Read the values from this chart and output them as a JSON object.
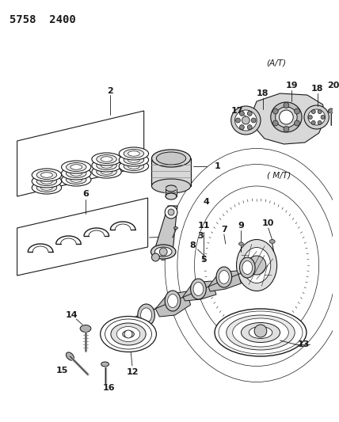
{
  "title": "5758  2400",
  "bg_color": "#ffffff",
  "lc": "#1a1a1a",
  "fig_width": 4.28,
  "fig_height": 5.33,
  "dpi": 100
}
